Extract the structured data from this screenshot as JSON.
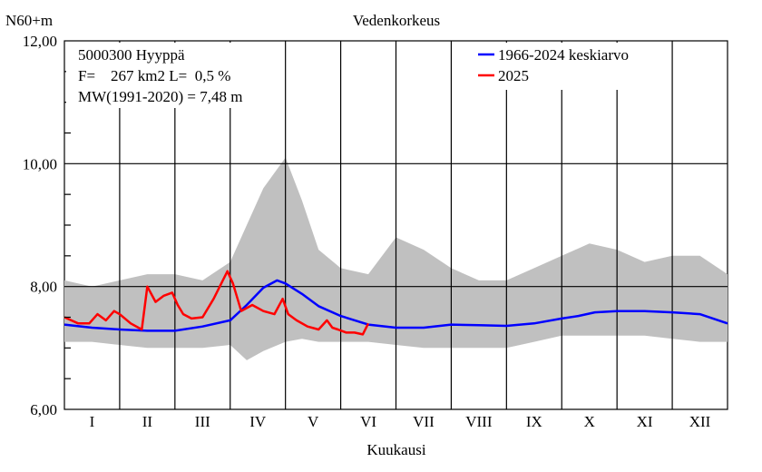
{
  "chart_data": {
    "type": "line",
    "title": "Vedenkorkeus",
    "ylabel": "N60+m",
    "xlabel": "Kuukausi",
    "ylim": [
      6.0,
      12.0
    ],
    "yticks": [
      "6,00",
      "8,00",
      "10,00",
      "12,00"
    ],
    "months": [
      "I",
      "II",
      "III",
      "IV",
      "V",
      "VI",
      "VII",
      "VIII",
      "IX",
      "X",
      "XI",
      "XII"
    ],
    "info": {
      "line1": "5000300 Hyyppä",
      "line2": "F=    267 km2 L=  0,5 %",
      "line3": "MW(1991-2020) = 7,48 m"
    },
    "grid": true,
    "legend_position": "top-right",
    "colors": {
      "mean": "#0000ff",
      "current": "#ff0000",
      "range": "#c0c0c0"
    },
    "range_band": {
      "name": "",
      "x_month": [
        0.0,
        0.5,
        1.0,
        1.5,
        2.0,
        2.5,
        3.0,
        3.3,
        3.6,
        4.0,
        4.3,
        4.6,
        5.0,
        5.5,
        6.0,
        6.5,
        7.0,
        7.5,
        8.0,
        8.5,
        9.0,
        9.5,
        10.0,
        10.5,
        11.0,
        11.5,
        12.0
      ],
      "low": [
        7.1,
        7.1,
        7.05,
        7.0,
        7.0,
        7.0,
        7.05,
        6.8,
        6.95,
        7.1,
        7.15,
        7.1,
        7.1,
        7.1,
        7.05,
        7.0,
        7.0,
        7.0,
        7.0,
        7.1,
        7.2,
        7.2,
        7.2,
        7.2,
        7.15,
        7.1,
        7.1
      ],
      "high": [
        8.1,
        8.0,
        8.1,
        8.2,
        8.2,
        8.1,
        8.4,
        9.0,
        9.6,
        10.1,
        9.4,
        8.6,
        8.3,
        8.2,
        8.8,
        8.6,
        8.3,
        8.1,
        8.1,
        8.3,
        8.5,
        8.7,
        8.6,
        8.4,
        8.5,
        8.5,
        8.2
      ]
    },
    "series": [
      {
        "name": "1966-2024 keskiarvo",
        "x_month": [
          0.0,
          0.5,
          1.0,
          1.5,
          2.0,
          2.5,
          3.0,
          3.3,
          3.6,
          3.85,
          4.0,
          4.3,
          4.6,
          5.0,
          5.5,
          6.0,
          6.5,
          7.0,
          7.5,
          8.0,
          8.5,
          9.0,
          9.3,
          9.6,
          10.0,
          10.5,
          11.0,
          11.5,
          12.0
        ],
        "values": [
          7.38,
          7.33,
          7.3,
          7.28,
          7.28,
          7.35,
          7.45,
          7.7,
          7.98,
          8.1,
          8.05,
          7.88,
          7.68,
          7.52,
          7.38,
          7.33,
          7.33,
          7.38,
          7.37,
          7.36,
          7.4,
          7.48,
          7.52,
          7.58,
          7.6,
          7.6,
          7.58,
          7.55,
          7.4
        ]
      },
      {
        "name": "2025",
        "x_month": [
          0.0,
          0.25,
          0.45,
          0.6,
          0.75,
          0.9,
          1.0,
          1.2,
          1.4,
          1.5,
          1.65,
          1.8,
          1.95,
          2.05,
          2.15,
          2.3,
          2.5,
          2.7,
          2.95,
          3.05,
          3.2,
          3.4,
          3.6,
          3.8,
          3.95,
          4.05,
          4.2,
          4.4,
          4.6,
          4.75,
          4.85,
          4.95,
          5.1,
          5.25,
          5.4,
          5.5
        ],
        "values": [
          7.5,
          7.4,
          7.4,
          7.55,
          7.45,
          7.6,
          7.55,
          7.4,
          7.3,
          8.0,
          7.75,
          7.85,
          7.9,
          7.7,
          7.55,
          7.48,
          7.5,
          7.8,
          8.25,
          8.05,
          7.6,
          7.7,
          7.6,
          7.55,
          7.8,
          7.55,
          7.45,
          7.35,
          7.3,
          7.45,
          7.33,
          7.3,
          7.25,
          7.25,
          7.22,
          7.4
        ]
      }
    ]
  }
}
